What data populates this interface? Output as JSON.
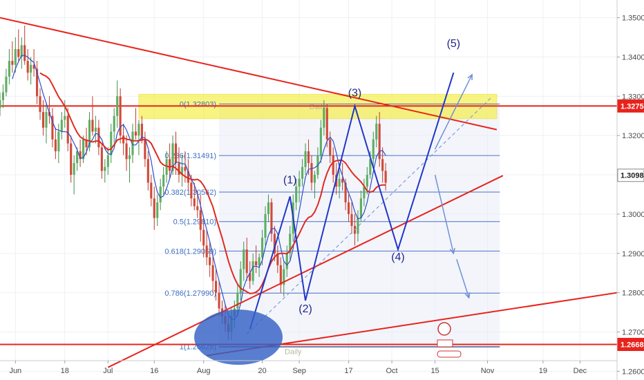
{
  "chart_data": {
    "type": "candlestick",
    "title": "",
    "price_axis": {
      "range": [
        1.2627,
        1.3545
      ],
      "ticks": [
        "1.35000",
        "1.34000",
        "1.33000",
        "1.32000",
        "1.31000",
        "1.30000",
        "1.29000",
        "1.28000",
        "1.27000",
        "1.26000"
      ]
    },
    "time_axis": {
      "labels": [
        {
          "label": "Jun",
          "day": 0
        },
        {
          "label": "18",
          "day": 16
        },
        {
          "label": "Jul",
          "day": 30
        },
        {
          "label": "16",
          "day": 45
        },
        {
          "label": "Aug",
          "day": 61
        },
        {
          "label": "20",
          "day": 80
        },
        {
          "label": "Sep",
          "day": 92
        },
        {
          "label": "17",
          "day": 108
        },
        {
          "label": "Oct",
          "day": 122
        },
        {
          "label": "15",
          "day": 136
        },
        {
          "label": "Nov",
          "day": 153
        },
        {
          "label": "19",
          "day": 171
        },
        {
          "label": "Dec",
          "day": 183
        }
      ],
      "day_range": [
        -5,
        195
      ]
    },
    "price_tags": [
      {
        "label": "1.32753",
        "price": 1.32753,
        "color": "#e8231c"
      },
      {
        "label": "1.30988",
        "price": 1.30988,
        "color": "#ffffff",
        "border": "#888888",
        "text": "#222222"
      },
      {
        "label": "1.26683",
        "price": 1.26683,
        "color": "#e8231c"
      }
    ],
    "fib_levels": [
      {
        "label": "0(1.32803)",
        "price": 1.32803
      },
      {
        "label": "0.236(1.31491)",
        "price": 1.31491
      },
      {
        "label": "0.382(1.30562)",
        "price": 1.30562
      },
      {
        "label": "0.5(1.29810)",
        "price": 1.2981
      },
      {
        "label": "0.618(1.29059)",
        "price": 1.29059
      },
      {
        "label": "0.786(1.27990)",
        "price": 1.2799
      },
      {
        "label": "1(1.26628)",
        "price": 1.26628
      }
    ],
    "zones": [
      {
        "label": "Daily",
        "from_day": 40,
        "to_day": 156,
        "price_top": 1.3305,
        "price_bottom": 1.3243,
        "color": "#f5ee2e"
      }
    ],
    "zone_lines": [
      {
        "label": "Daily",
        "price": 1.26683
      }
    ],
    "wave_labels": [
      {
        "label": "(1)",
        "day": 89,
        "price": 1.3078
      },
      {
        "label": "(2)",
        "day": 94,
        "price": 1.275
      },
      {
        "label": "(3)",
        "day": 110,
        "price": 1.33
      },
      {
        "label": "(4)",
        "day": 124,
        "price": 1.2882
      },
      {
        "label": "(5)",
        "day": 142,
        "price": 1.3425
      }
    ],
    "horizontal_lines": [
      {
        "price": 1.32753,
        "color": "#e8231c"
      },
      {
        "price": 1.26683,
        "color": "#e8231c"
      }
    ],
    "trend_lines": [
      {
        "from": [
          -5,
          1.35
        ],
        "to": [
          156,
          1.3215
        ],
        "color": "#e8231c"
      },
      {
        "from": [
          30,
          1.261
        ],
        "to": [
          158,
          1.3098
        ],
        "color": "#e8231c"
      },
      {
        "from": [
          62,
          1.264
        ],
        "to": [
          195,
          1.28
        ],
        "color": "#e8231c"
      }
    ],
    "wave_path": [
      [
        76,
        1.2707
      ],
      [
        89,
        1.3045
      ],
      [
        94,
        1.278
      ],
      [
        110,
        1.3275
      ],
      [
        124,
        1.291
      ],
      [
        142,
        1.336
      ]
    ],
    "channel_dashed": [
      [
        75,
        1.2695
      ],
      [
        154,
        1.3295
      ]
    ],
    "projection_arrows": [
      {
        "from": [
          136,
          1.3165
        ],
        "to": [
          148,
          1.3355
        ]
      },
      {
        "from": [
          136,
          1.31
        ],
        "to": [
          142,
          1.29
        ]
      },
      {
        "from": [
          143,
          1.2885
        ],
        "to": [
          147,
          1.2787
        ]
      }
    ],
    "candles": [
      [
        -5,
        1.327,
        1.331,
        1.325,
        1.329
      ],
      [
        -4,
        1.329,
        1.333,
        1.327,
        1.331
      ],
      [
        -3,
        1.331,
        1.337,
        1.33,
        1.335
      ],
      [
        -2,
        1.335,
        1.342,
        1.333,
        1.339
      ],
      [
        -1,
        1.339,
        1.344,
        1.336,
        1.338
      ],
      [
        0,
        1.338,
        1.345,
        1.336,
        1.342
      ],
      [
        1,
        1.342,
        1.347,
        1.339,
        1.34
      ],
      [
        2,
        1.34,
        1.345,
        1.337,
        1.343
      ],
      [
        3,
        1.343,
        1.348,
        1.338,
        1.339
      ],
      [
        4,
        1.339,
        1.342,
        1.334,
        1.336
      ],
      [
        5,
        1.336,
        1.34,
        1.333,
        1.338
      ],
      [
        6,
        1.338,
        1.342,
        1.335,
        1.337
      ],
      [
        7,
        1.337,
        1.339,
        1.328,
        1.33
      ],
      [
        8,
        1.33,
        1.332,
        1.324,
        1.326
      ],
      [
        9,
        1.326,
        1.329,
        1.32,
        1.322
      ],
      [
        10,
        1.322,
        1.328,
        1.318,
        1.326
      ],
      [
        11,
        1.326,
        1.33,
        1.323,
        1.325
      ],
      [
        12,
        1.325,
        1.327,
        1.317,
        1.319
      ],
      [
        13,
        1.319,
        1.322,
        1.314,
        1.316
      ],
      [
        14,
        1.316,
        1.323,
        1.313,
        1.321
      ],
      [
        15,
        1.321,
        1.326,
        1.319,
        1.324
      ],
      [
        16,
        1.324,
        1.329,
        1.322,
        1.325
      ],
      [
        17,
        1.325,
        1.327,
        1.316,
        1.318
      ],
      [
        18,
        1.318,
        1.32,
        1.308,
        1.31
      ],
      [
        19,
        1.31,
        1.315,
        1.305,
        1.313
      ],
      [
        20,
        1.313,
        1.317,
        1.311,
        1.316
      ],
      [
        21,
        1.316,
        1.319,
        1.312,
        1.314
      ],
      [
        22,
        1.314,
        1.32,
        1.313,
        1.319
      ],
      [
        23,
        1.319,
        1.322,
        1.315,
        1.317
      ],
      [
        24,
        1.317,
        1.326,
        1.316,
        1.324
      ],
      [
        25,
        1.324,
        1.33,
        1.32,
        1.321
      ],
      [
        26,
        1.321,
        1.325,
        1.318,
        1.322
      ],
      [
        27,
        1.322,
        1.324,
        1.315,
        1.317
      ],
      [
        28,
        1.317,
        1.318,
        1.309,
        1.311
      ],
      [
        29,
        1.311,
        1.314,
        1.308,
        1.312
      ],
      [
        30,
        1.312,
        1.317,
        1.31,
        1.315
      ],
      [
        31,
        1.315,
        1.323,
        1.313,
        1.321
      ],
      [
        32,
        1.321,
        1.327,
        1.318,
        1.325
      ],
      [
        33,
        1.325,
        1.334,
        1.322,
        1.33
      ],
      [
        34,
        1.33,
        1.332,
        1.318,
        1.32
      ],
      [
        35,
        1.32,
        1.323,
        1.315,
        1.318
      ],
      [
        36,
        1.318,
        1.32,
        1.311,
        1.314
      ],
      [
        37,
        1.314,
        1.317,
        1.308,
        1.315
      ],
      [
        38,
        1.315,
        1.323,
        1.313,
        1.321
      ],
      [
        39,
        1.321,
        1.327,
        1.319,
        1.32
      ],
      [
        40,
        1.32,
        1.324,
        1.315,
        1.323
      ],
      [
        41,
        1.323,
        1.325,
        1.318,
        1.319
      ],
      [
        42,
        1.319,
        1.321,
        1.312,
        1.314
      ],
      [
        43,
        1.314,
        1.316,
        1.306,
        1.308
      ],
      [
        44,
        1.308,
        1.31,
        1.302,
        1.304
      ],
      [
        45,
        1.304,
        1.307,
        1.296,
        1.299
      ],
      [
        46,
        1.299,
        1.305,
        1.297,
        1.303
      ],
      [
        47,
        1.303,
        1.309,
        1.301,
        1.307
      ],
      [
        48,
        1.307,
        1.312,
        1.305,
        1.31
      ],
      [
        49,
        1.31,
        1.316,
        1.308,
        1.314
      ],
      [
        50,
        1.314,
        1.318,
        1.309,
        1.311
      ],
      [
        51,
        1.311,
        1.32,
        1.31,
        1.318
      ],
      [
        52,
        1.318,
        1.321,
        1.31,
        1.313
      ],
      [
        53,
        1.313,
        1.317,
        1.308,
        1.31
      ],
      [
        54,
        1.31,
        1.315,
        1.307,
        1.312
      ],
      [
        55,
        1.312,
        1.316,
        1.308,
        1.311
      ],
      [
        56,
        1.311,
        1.314,
        1.306,
        1.308
      ],
      [
        57,
        1.308,
        1.31,
        1.302,
        1.304
      ],
      [
        58,
        1.304,
        1.308,
        1.301,
        1.302
      ],
      [
        59,
        1.302,
        1.306,
        1.299,
        1.301
      ],
      [
        60,
        1.301,
        1.305,
        1.293,
        1.296
      ],
      [
        61,
        1.296,
        1.299,
        1.289,
        1.292
      ],
      [
        62,
        1.292,
        1.296,
        1.287,
        1.289
      ],
      [
        63,
        1.289,
        1.293,
        1.284,
        1.287
      ],
      [
        64,
        1.287,
        1.29,
        1.28,
        1.283
      ],
      [
        65,
        1.283,
        1.286,
        1.278,
        1.28
      ],
      [
        66,
        1.28,
        1.283,
        1.274,
        1.276
      ],
      [
        67,
        1.276,
        1.278,
        1.272,
        1.274
      ],
      [
        68,
        1.274,
        1.277,
        1.27,
        1.272
      ],
      [
        69,
        1.272,
        1.274,
        1.268,
        1.27
      ],
      [
        70,
        1.27,
        1.276,
        1.268,
        1.274
      ],
      [
        71,
        1.274,
        1.278,
        1.271,
        1.276
      ],
      [
        72,
        1.276,
        1.282,
        1.274,
        1.28
      ],
      [
        73,
        1.28,
        1.288,
        1.278,
        1.286
      ],
      [
        74,
        1.286,
        1.293,
        1.283,
        1.291
      ],
      [
        75,
        1.291,
        1.294,
        1.283,
        1.285
      ],
      [
        76,
        1.285,
        1.288,
        1.281,
        1.283
      ],
      [
        77,
        1.283,
        1.29,
        1.282,
        1.288
      ],
      [
        78,
        1.288,
        1.292,
        1.285,
        1.287
      ],
      [
        79,
        1.287,
        1.29,
        1.284,
        1.289
      ],
      [
        80,
        1.289,
        1.296,
        1.287,
        1.294
      ],
      [
        81,
        1.294,
        1.302,
        1.292,
        1.3
      ],
      [
        82,
        1.3,
        1.305,
        1.298,
        1.303
      ],
      [
        83,
        1.303,
        1.304,
        1.293,
        1.295
      ],
      [
        84,
        1.295,
        1.297,
        1.288,
        1.29
      ],
      [
        85,
        1.29,
        1.292,
        1.285,
        1.287
      ],
      [
        86,
        1.287,
        1.289,
        1.28,
        1.282
      ],
      [
        87,
        1.282,
        1.288,
        1.279,
        1.286
      ],
      [
        88,
        1.286,
        1.292,
        1.284,
        1.29
      ],
      [
        89,
        1.29,
        1.297,
        1.288,
        1.295
      ],
      [
        90,
        1.295,
        1.305,
        1.293,
        1.303
      ],
      [
        91,
        1.303,
        1.309,
        1.301,
        1.307
      ],
      [
        92,
        1.307,
        1.311,
        1.303,
        1.309
      ],
      [
        93,
        1.309,
        1.314,
        1.307,
        1.312
      ],
      [
        94,
        1.312,
        1.318,
        1.31,
        1.316
      ],
      [
        95,
        1.316,
        1.319,
        1.31,
        1.313
      ],
      [
        96,
        1.313,
        1.315,
        1.306,
        1.308
      ],
      [
        97,
        1.308,
        1.311,
        1.304,
        1.31
      ],
      [
        98,
        1.31,
        1.317,
        1.309,
        1.315
      ],
      [
        99,
        1.315,
        1.324,
        1.313,
        1.322
      ],
      [
        100,
        1.322,
        1.329,
        1.32,
        1.327
      ],
      [
        101,
        1.327,
        1.328,
        1.317,
        1.319
      ],
      [
        102,
        1.319,
        1.321,
        1.313,
        1.315
      ],
      [
        103,
        1.315,
        1.317,
        1.308,
        1.31
      ],
      [
        104,
        1.31,
        1.313,
        1.305,
        1.307
      ],
      [
        105,
        1.307,
        1.311,
        1.304,
        1.309
      ],
      [
        106,
        1.309,
        1.313,
        1.306,
        1.308
      ],
      [
        107,
        1.308,
        1.309,
        1.301,
        1.303
      ],
      [
        108,
        1.303,
        1.305,
        1.298,
        1.3
      ],
      [
        109,
        1.3,
        1.303,
        1.295,
        1.297
      ],
      [
        110,
        1.297,
        1.3,
        1.292,
        1.295
      ],
      [
        111,
        1.295,
        1.301,
        1.293,
        1.299
      ],
      [
        112,
        1.299,
        1.306,
        1.298,
        1.304
      ],
      [
        113,
        1.304,
        1.309,
        1.302,
        1.307
      ],
      [
        114,
        1.307,
        1.312,
        1.305,
        1.31
      ],
      [
        115,
        1.31,
        1.316,
        1.309,
        1.314
      ],
      [
        116,
        1.314,
        1.321,
        1.312,
        1.319
      ],
      [
        117,
        1.319,
        1.325,
        1.317,
        1.323
      ],
      [
        118,
        1.323,
        1.326,
        1.312,
        1.314
      ],
      [
        119,
        1.314,
        1.317,
        1.308,
        1.311
      ],
      [
        120,
        1.311,
        1.313,
        1.306,
        1.308
      ]
    ]
  }
}
